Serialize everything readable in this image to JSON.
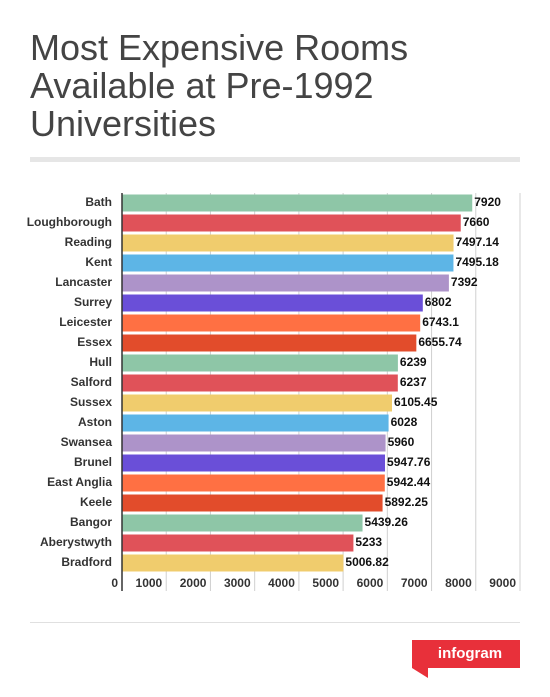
{
  "chart_data": {
    "type": "bar",
    "orientation": "horizontal",
    "title": "Most Expensive Rooms Available at Pre-1992 Universities",
    "categories": [
      "Bath",
      "Loughborough",
      "Reading",
      "Kent",
      "Lancaster",
      "Surrey",
      "Leicester",
      "Essex",
      "Hull",
      "Salford",
      "Sussex",
      "Aston",
      "Swansea",
      "Brunel",
      "East Anglia",
      "Keele",
      "Bangor",
      "Aberystwyth",
      "Bradford"
    ],
    "values": [
      7920,
      7660,
      7497.14,
      7495.18,
      7392,
      6802,
      6743.1,
      6655.74,
      6239,
      6237,
      6105.45,
      6028,
      5960,
      5947.76,
      5942.44,
      5892.25,
      5439.26,
      5233,
      5006.82
    ],
    "colors": [
      "#8ec6a7",
      "#e05259",
      "#f0cc6d",
      "#5db5e6",
      "#ad93c9",
      "#6a4fd8",
      "#ff7043",
      "#e24c2b"
    ],
    "xlim": [
      0,
      9000
    ],
    "xticks": [
      0,
      1000,
      2000,
      3000,
      4000,
      5000,
      6000,
      7000,
      8000,
      9000
    ],
    "grid": true
  },
  "brand": "infogram"
}
